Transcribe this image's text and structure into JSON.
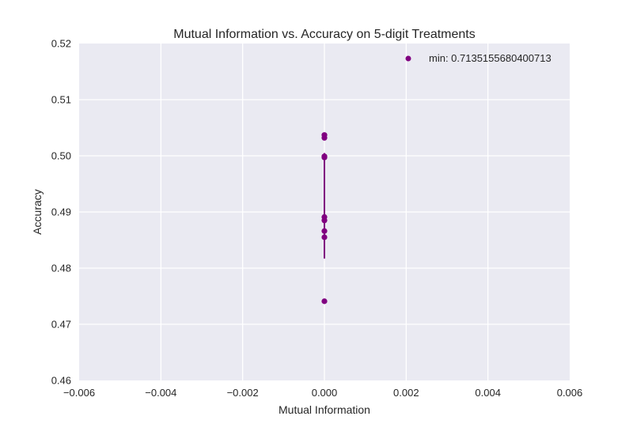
{
  "chart_data": {
    "type": "scatter",
    "title": "Mutual Information vs. Accuracy on 5-digit Treatments",
    "xlabel": "Mutual Information",
    "ylabel": "Accuracy",
    "xlim": [
      -0.006,
      0.006
    ],
    "ylim": [
      0.46,
      0.52
    ],
    "xticks": [
      -0.006,
      -0.004,
      -0.002,
      0.0,
      0.002,
      0.004,
      0.006
    ],
    "xtick_labels": [
      "−0.006",
      "−0.004",
      "−0.002",
      "0.000",
      "0.002",
      "0.004",
      "0.006"
    ],
    "yticks": [
      0.46,
      0.47,
      0.48,
      0.49,
      0.5,
      0.51,
      0.52
    ],
    "ytick_labels": [
      "0.46",
      "0.47",
      "0.48",
      "0.49",
      "0.50",
      "0.51",
      "0.52"
    ],
    "grid": true,
    "legend_position": "top-right",
    "background_color": "#eaeaf2",
    "grid_color": "#ffffff",
    "series": [
      {
        "name": "min: 0.7135155680400713",
        "color": "#800080",
        "points": [
          {
            "x": 0.0,
            "y": 0.5037
          },
          {
            "x": 0.0,
            "y": 0.5032
          },
          {
            "x": 0.0,
            "y": 0.4999
          },
          {
            "x": 0.0,
            "y": 0.4997
          },
          {
            "x": 0.0,
            "y": 0.4891
          },
          {
            "x": 0.0,
            "y": 0.4885
          },
          {
            "x": 0.0,
            "y": 0.4866
          },
          {
            "x": 0.0,
            "y": 0.4855
          },
          {
            "x": 0.0,
            "y": 0.4741
          }
        ]
      }
    ],
    "errorbar": {
      "x": 0.0,
      "y_low": 0.4817,
      "y_high": 0.5005,
      "color": "#800080"
    }
  }
}
